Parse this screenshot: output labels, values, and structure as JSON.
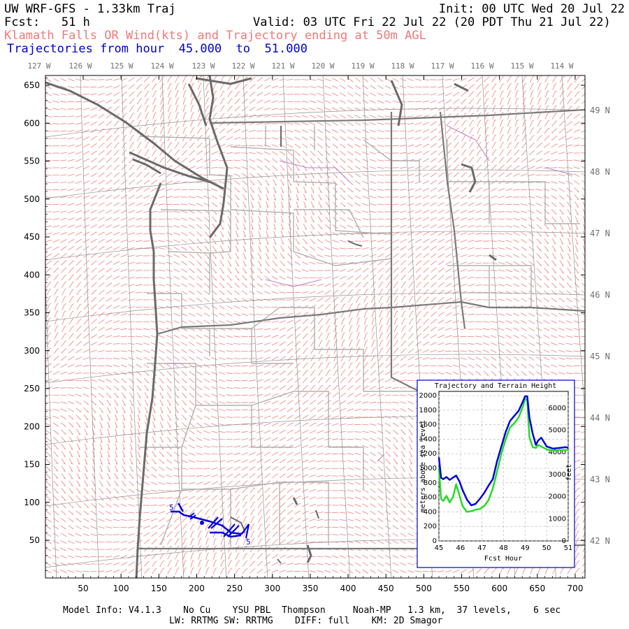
{
  "header": {
    "title": "UW WRF-GFS - 1.33km Traj",
    "init": "Init: 00 UTC Wed 20 Jul 22",
    "fcst_label": "Fcst:",
    "fcst_value": "51 h",
    "valid": "Valid: 03 UTC Fri 22 Jul 22 (20 PDT Thu 21 Jul 22)",
    "subtitle": "Klamath Falls OR Wind(kts) and Trajectory ending at 50m AGL",
    "traj_prefix": "Trajectories from hour",
    "traj_from": "45.000",
    "traj_to_word": "to",
    "traj_to": "51.000"
  },
  "colors": {
    "header_red": "#f07878",
    "header_blue": "#0000cc",
    "barb": "#f08080",
    "coast": "#6a6a6a",
    "state": "#7a7a7a",
    "county": "#b0b0b0",
    "water": "#c080c0",
    "traj": "#0000dd",
    "terrain": "#22dd22"
  },
  "map": {
    "lon_labels": [
      "127 W",
      "126 W",
      "125 W",
      "124 W",
      "123 W",
      "122 W",
      "121 W",
      "120 W",
      "119 W",
      "118 W",
      "117 W",
      "116 W",
      "115 W",
      "114 W"
    ],
    "lat_labels": [
      "49 N",
      "48 N",
      "47 N",
      "46 N",
      "45 N",
      "44 N",
      "43 N",
      "42 N"
    ],
    "y_ticks": [
      650,
      600,
      550,
      500,
      450,
      400,
      350,
      300,
      250,
      200,
      150,
      100,
      50
    ],
    "x_ticks": [
      50,
      100,
      150,
      200,
      250,
      300,
      350,
      400,
      450,
      500,
      550,
      600,
      650,
      700
    ],
    "trajectory_markers": [
      "5",
      "5"
    ]
  },
  "inset": {
    "title": "Trajectory and Terrain Height",
    "y_label": "meters above sea level",
    "y2_label": "feet",
    "x_label": "Fcst Hour",
    "y_ticks": [
      2000,
      1800,
      1600,
      1400,
      1200,
      1000,
      800,
      600,
      400,
      200,
      0
    ],
    "y2_ticks": [
      6000,
      5000,
      4000,
      3000,
      2000,
      1000,
      0
    ],
    "x_ticks": [
      45,
      46,
      47,
      48,
      49,
      50,
      51
    ]
  },
  "chart_data": {
    "type": "line",
    "title": "Trajectory and Terrain Height",
    "xlabel": "Fcst Hour",
    "ylabel": "meters above sea level",
    "y2label": "feet",
    "xlim": [
      45,
      51
    ],
    "ylim": [
      0,
      2000
    ],
    "y2lim": [
      0,
      6562
    ],
    "grid": true,
    "series": [
      {
        "color": "#0000dd",
        "x": [
          45.0,
          45.1,
          45.2,
          45.35,
          45.5,
          45.65,
          45.8,
          45.95,
          46.1,
          46.3,
          46.5,
          46.7,
          46.9,
          47.1,
          47.3,
          47.5,
          47.7,
          47.9,
          48.1,
          48.3,
          48.5,
          48.7,
          48.9,
          49.0,
          49.1,
          49.2,
          49.35,
          49.5,
          49.6,
          49.75,
          50.0,
          50.3,
          50.6,
          50.9,
          51.0
        ],
        "y": [
          1150,
          870,
          850,
          880,
          840,
          870,
          900,
          820,
          700,
          570,
          490,
          510,
          580,
          660,
          760,
          850,
          1100,
          1300,
          1500,
          1650,
          1720,
          1790,
          1920,
          1990,
          1990,
          1700,
          1480,
          1320,
          1380,
          1420,
          1300,
          1270,
          1280,
          1290,
          1280
        ]
      },
      {
        "color": "#22dd22",
        "x": [
          45.0,
          45.1,
          45.2,
          45.35,
          45.5,
          45.65,
          45.8,
          45.95,
          46.1,
          46.3,
          46.5,
          46.7,
          46.9,
          47.1,
          47.3,
          47.5,
          47.7,
          47.9,
          48.1,
          48.3,
          48.5,
          48.7,
          48.9,
          49.0,
          49.1,
          49.2,
          49.35,
          49.5,
          49.6,
          49.75,
          50.0,
          50.3,
          50.6,
          50.9,
          51.0
        ],
        "y": [
          1000,
          580,
          550,
          620,
          530,
          600,
          780,
          630,
          480,
          400,
          410,
          430,
          440,
          480,
          560,
          720,
          960,
          1200,
          1400,
          1560,
          1620,
          1700,
          1850,
          1960,
          1930,
          1430,
          1290,
          1280,
          1320,
          1300,
          1260,
          1240,
          1250,
          1250,
          1250
        ]
      }
    ]
  }
}
